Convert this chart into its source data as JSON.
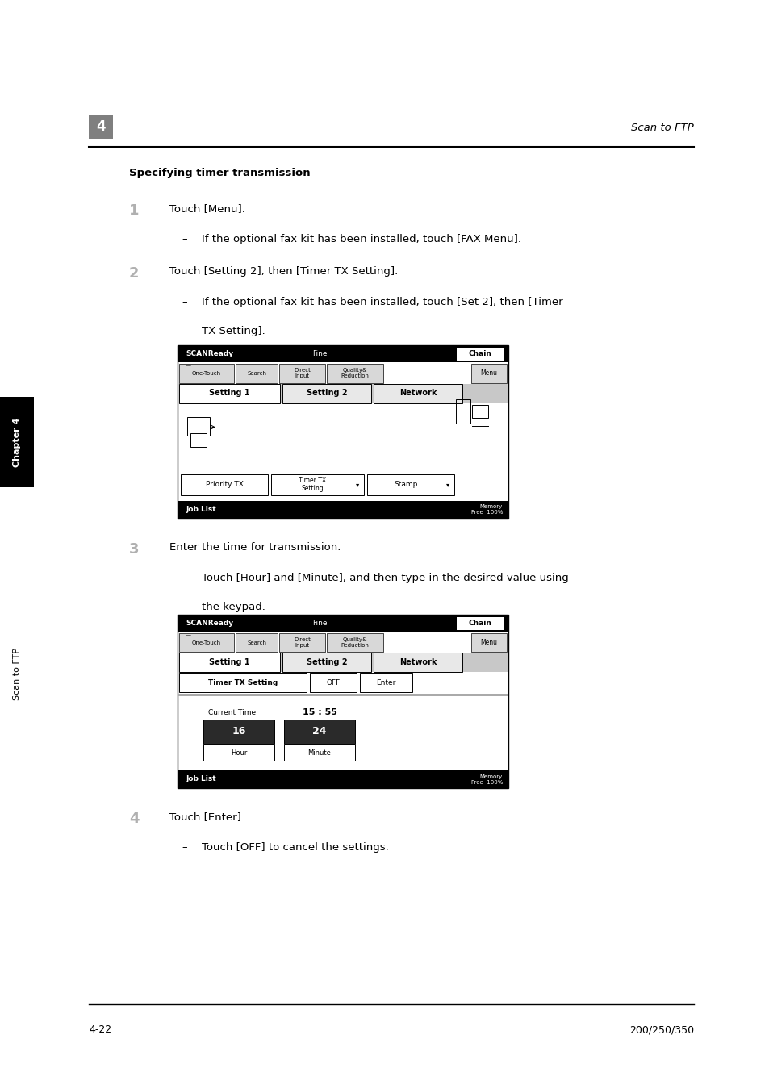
{
  "page_width": 9.54,
  "page_height": 13.5,
  "bg_color": "#ffffff",
  "header_number": "4",
  "header_right": "Scan to FTP",
  "section_title": "Specifying timer transmission",
  "step1_number": "1",
  "step1_text": "Touch [Menu].",
  "step1_bullet": "If the optional fax kit has been installed, touch [FAX Menu].",
  "step2_number": "2",
  "step2_text": "Touch [Setting 2], then [Timer TX Setting].",
  "step2_bullet_line1": "If the optional fax kit has been installed, touch [Set 2], then [Timer",
  "step2_bullet_line2": "TX Setting].",
  "step3_number": "3",
  "step3_text": "Enter the time for transmission.",
  "step3_bullet_line1": "Touch [Hour] and [Minute], and then type in the desired value using",
  "step3_bullet_line2": "the keypad.",
  "step4_number": "4",
  "step4_text": "Touch [Enter].",
  "step4_bullet": "Touch [OFF] to cancel the settings.",
  "sidebar_chapter": "Chapter 4",
  "sidebar_scan": "Scan to FTP",
  "footer_left": "4-22",
  "footer_right": "200/250/350"
}
